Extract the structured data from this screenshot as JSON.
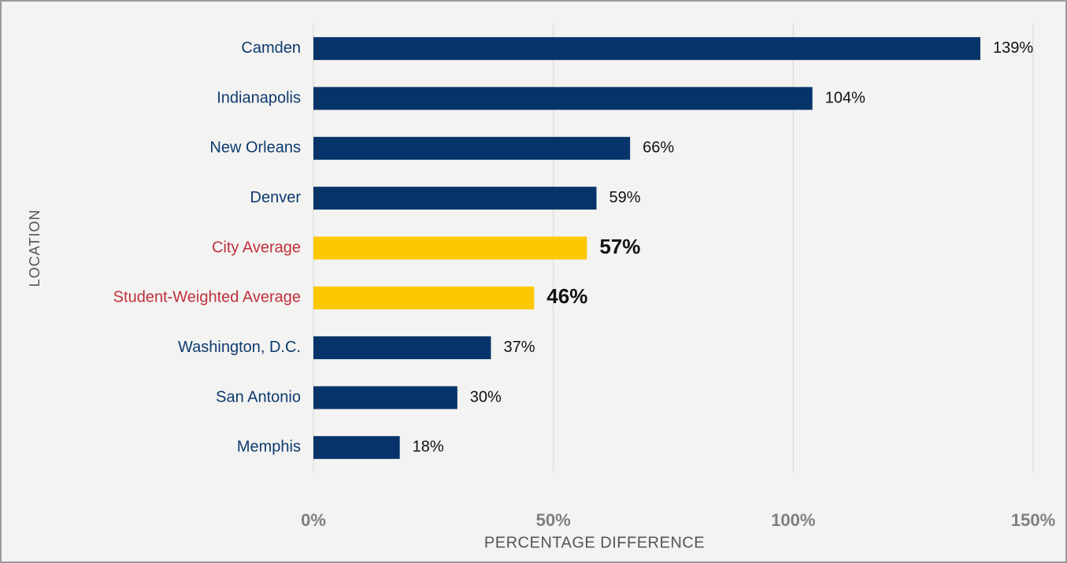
{
  "chart_data": {
    "type": "bar",
    "orientation": "horizontal",
    "x_label": "PERCENTAGE DIFFERENCE",
    "y_label": "LOCATION",
    "categories": [
      "Camden",
      "Indianapolis",
      "New Orleans",
      "Denver",
      "City Average",
      "Student-Weighted Average",
      "Washington, D.C.",
      "San Antonio",
      "Memphis"
    ],
    "values": [
      139,
      104,
      66,
      59,
      57,
      46,
      37,
      30,
      18
    ],
    "value_labels": [
      "139%",
      "104%",
      "66%",
      "59%",
      "57%",
      "46%",
      "37%",
      "30%",
      "18%"
    ],
    "colors": [
      "#06346a",
      "#06346a",
      "#06346a",
      "#06346a",
      "#fcc800",
      "#fcc800",
      "#06346a",
      "#06346a",
      "#06346a"
    ],
    "xlim": [
      0,
      150
    ],
    "xticks": [
      {
        "value": 0,
        "label": "0%"
      },
      {
        "value": 50,
        "label": "50%"
      },
      {
        "value": 100,
        "label": "100%"
      },
      {
        "value": 150,
        "label": "150%"
      }
    ],
    "grid": true
  }
}
